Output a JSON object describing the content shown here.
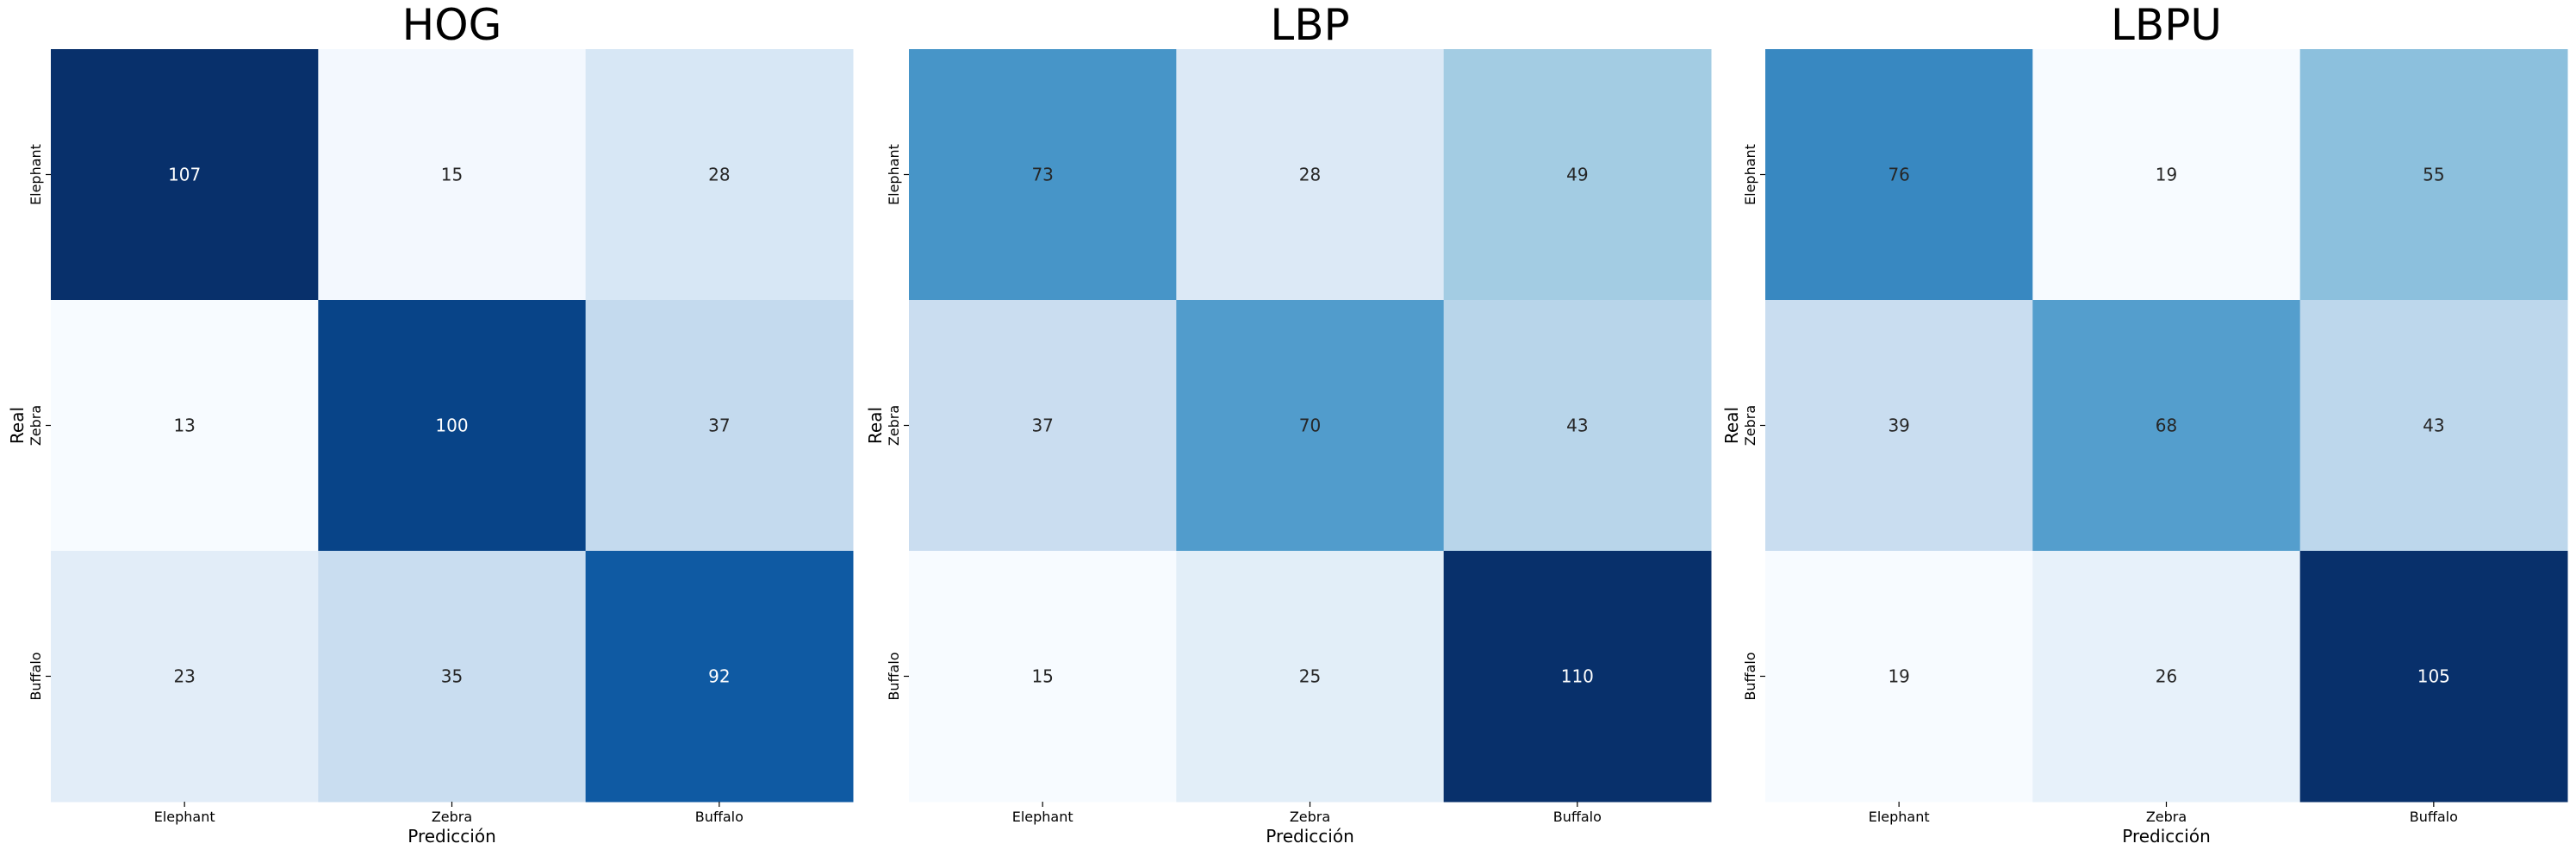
{
  "chart_data": [
    {
      "type": "heatmap",
      "title": "HOG",
      "xlabel": "Predicción",
      "ylabel": "Real",
      "x_categories": [
        "Elephant",
        "Zebra",
        "Buffalo"
      ],
      "y_categories": [
        "Elephant",
        "Zebra",
        "Buffalo"
      ],
      "values": [
        [
          107,
          15,
          28
        ],
        [
          13,
          100,
          37
        ],
        [
          23,
          35,
          92
        ]
      ],
      "colormap": "Blues",
      "colorbar": false
    },
    {
      "type": "heatmap",
      "title": "LBP",
      "xlabel": "Predicción",
      "ylabel": "Real",
      "x_categories": [
        "Elephant",
        "Zebra",
        "Buffalo"
      ],
      "y_categories": [
        "Elephant",
        "Zebra",
        "Buffalo"
      ],
      "values": [
        [
          73,
          28,
          49
        ],
        [
          37,
          70,
          43
        ],
        [
          15,
          25,
          110
        ]
      ],
      "colormap": "Blues",
      "colorbar": false
    },
    {
      "type": "heatmap",
      "title": "LBPU",
      "xlabel": "Predicción",
      "ylabel": "Real",
      "x_categories": [
        "Elephant",
        "Zebra",
        "Buffalo"
      ],
      "y_categories": [
        "Elephant",
        "Zebra",
        "Buffalo"
      ],
      "values": [
        [
          76,
          19,
          55
        ],
        [
          39,
          68,
          43
        ],
        [
          19,
          26,
          105
        ]
      ],
      "colormap": "Blues",
      "colorbar": false
    }
  ]
}
